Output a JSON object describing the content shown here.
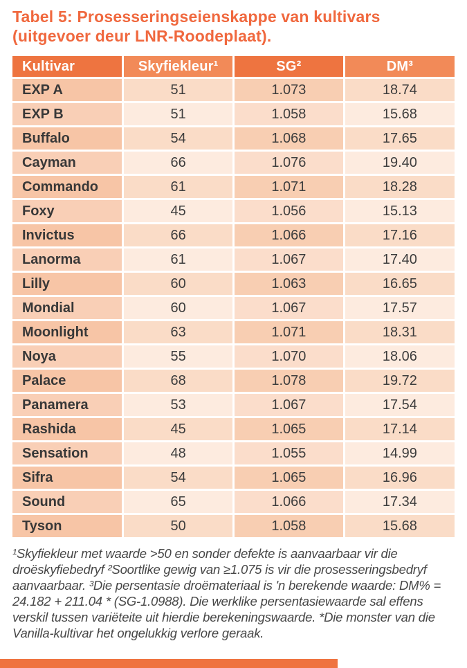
{
  "title": {
    "line1": "Tabel 5: Prosesseringseienskappe van kultivars",
    "line2": "(uitgevoer deur LNR-Roodeplaat)."
  },
  "table": {
    "columns": [
      "Kultivar",
      "Skyfiekleur¹",
      "SG²",
      "DM³"
    ],
    "rows": [
      [
        "EXP A",
        "51",
        "1.073",
        "18.74"
      ],
      [
        "EXP B",
        "51",
        "1.058",
        "15.68"
      ],
      [
        "Buffalo",
        "54",
        "1.068",
        "17.65"
      ],
      [
        "Cayman",
        "66",
        "1.076",
        "19.40"
      ],
      [
        "Commando",
        "61",
        "1.071",
        "18.28"
      ],
      [
        "Foxy",
        "45",
        "1.056",
        "15.13"
      ],
      [
        "Invictus",
        "66",
        "1.066",
        "17.16"
      ],
      [
        "Lanorma",
        "61",
        "1.067",
        "17.40"
      ],
      [
        "Lilly",
        "60",
        "1.063",
        "16.65"
      ],
      [
        "Mondial",
        "60",
        "1.067",
        "17.57"
      ],
      [
        "Moonlight",
        "63",
        "1.071",
        "18.31"
      ],
      [
        "Noya",
        "55",
        "1.070",
        "18.06"
      ],
      [
        "Palace",
        "68",
        "1.078",
        "19.72"
      ],
      [
        "Panamera",
        "53",
        "1.067",
        "17.54"
      ],
      [
        "Rashida",
        "45",
        "1.065",
        "17.14"
      ],
      [
        "Sensation",
        "48",
        "1.055",
        "14.99"
      ],
      [
        "Sifra",
        "54",
        "1.065",
        "16.96"
      ],
      [
        "Sound",
        "65",
        "1.066",
        "17.34"
      ],
      [
        "Tyson",
        "50",
        "1.058",
        "15.68"
      ]
    ]
  },
  "footnote": "¹Skyfiekleur met waarde >50 en sonder defekte is aanvaarbaar vir die droëskyfiebedryf ²Soortlike gewig van ≥1.075 is vir die prosesseringsbedryf aanvaarbaar. ³Die persentasie droëmateriaal is 'n berekende waarde: DM% = 24.182 + 211.04 * (SG-1.0988). Die werklike persentasiewaarde sal effens verskil tussen variëteite uit hierdie berekeningswaarde. *Die monster van die Vanilla-kultivar het ongelukkig verlore geraak.",
  "colors": {
    "title": "#f0683e",
    "header_dark": "#ee7440",
    "header_light": "#f28a58",
    "row_dark_col1": "#f7c5a6",
    "row_dark_col3": "#f8ceb2",
    "row_dark_col24": "#fadcc7",
    "row_light_col1": "#f9cfb6",
    "row_light_col3": "#fbddcb",
    "row_light_col24": "#fdebdf",
    "bottom_bar": "#ef7340",
    "body_text": "#3d3d3d"
  }
}
